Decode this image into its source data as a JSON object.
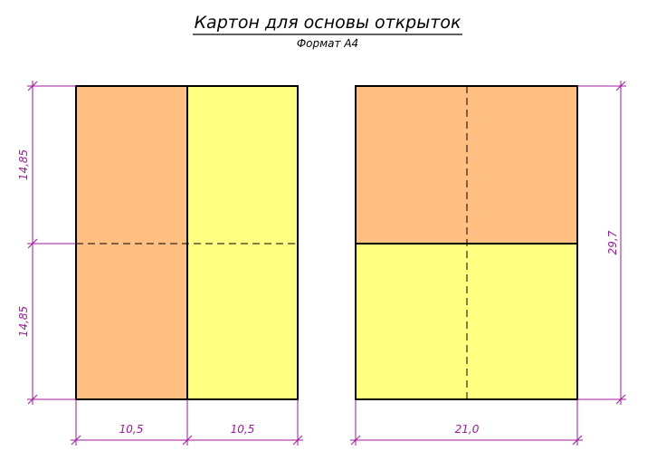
{
  "header": {
    "title": "Картон для основы открыток",
    "subtitle": "Формат А4"
  },
  "left_sheet": {
    "dimensions": {
      "top_height": "14,85",
      "bottom_height": "14,85",
      "left_width": "10,5",
      "right_width": "10,5"
    }
  },
  "right_sheet": {
    "dimensions": {
      "width": "21,0",
      "height": "29,7"
    }
  }
}
